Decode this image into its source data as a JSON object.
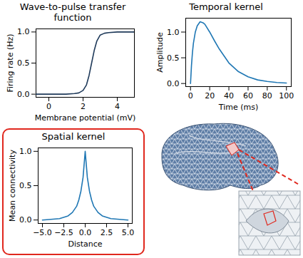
{
  "chart_data": [
    {
      "type": "line",
      "title": "Wave-to-pulse transfer function",
      "xlabel": "Membrane potential (mV)",
      "ylabel": "Firing rate (Hz)",
      "color": "#1f3a5a",
      "x": [
        -0.75,
        0,
        1,
        1.5,
        1.75,
        2,
        2.2,
        2.35,
        2.5,
        2.65,
        2.8,
        3,
        3.25,
        3.5,
        4,
        5
      ],
      "values": [
        0,
        0,
        0,
        0.01,
        0.02,
        0.06,
        0.15,
        0.3,
        0.5,
        0.7,
        0.85,
        0.95,
        0.98,
        0.99,
        1,
        1
      ],
      "xlim": [
        -0.75,
        5
      ],
      "ylim": [
        -0.05,
        1.05
      ],
      "xticks": [
        0,
        2,
        4
      ],
      "yticks": [
        {
          "value": 0,
          "label": "0.0"
        },
        {
          "value": 0.5,
          "label": "0.5"
        },
        {
          "value": 1,
          "label": "1.0"
        }
      ]
    },
    {
      "type": "line",
      "title": "Temporal kernel",
      "xlabel": "Time (ms)",
      "ylabel": "Amplitude",
      "color": "#1f77b4",
      "x": [
        0,
        1,
        2,
        3,
        5,
        7,
        10,
        13,
        15,
        20,
        25,
        30,
        40,
        50,
        60,
        70,
        80,
        90,
        100
      ],
      "values": [
        0,
        0.35,
        0.6,
        0.78,
        1.0,
        1.12,
        1.2,
        1.18,
        1.15,
        1.0,
        0.83,
        0.67,
        0.4,
        0.23,
        0.13,
        0.07,
        0.04,
        0.02,
        0.01
      ],
      "xlim": [
        -5,
        105
      ],
      "ylim": [
        -0.06,
        1.27
      ],
      "xticks": [
        0,
        20,
        40,
        60,
        80,
        100
      ],
      "yticks": [
        {
          "value": 0,
          "label": "0.0"
        },
        {
          "value": 0.5,
          "label": "0.5"
        },
        {
          "value": 1,
          "label": "1.0"
        }
      ]
    },
    {
      "type": "line",
      "title": "Spatial kernel",
      "xlabel": "Distance",
      "ylabel": "Mean connectivity",
      "color": "#1f77b4",
      "x": [
        -5,
        -4,
        -3,
        -2,
        -1.5,
        -1,
        -0.75,
        -0.5,
        -0.25,
        0,
        0.25,
        0.5,
        0.75,
        1,
        1.5,
        2,
        3,
        4,
        5
      ],
      "values": [
        0,
        0.01,
        0.02,
        0.06,
        0.11,
        0.2,
        0.29,
        0.42,
        0.62,
        1.0,
        0.62,
        0.42,
        0.29,
        0.2,
        0.11,
        0.06,
        0.02,
        0.01,
        0
      ],
      "xlim": [
        -5.5,
        5.5
      ],
      "ylim": [
        -0.05,
        1.05
      ],
      "xticks": [
        {
          "value": -5,
          "label": "−5.0"
        },
        {
          "value": -2.5,
          "label": "−2.5"
        },
        {
          "value": 0,
          "label": "0.0"
        },
        {
          "value": 2.5,
          "label": "2.5"
        },
        {
          "value": 5,
          "label": "5.0"
        }
      ],
      "yticks": [
        {
          "value": 0,
          "label": "0.0"
        },
        {
          "value": 0.5,
          "label": "0.5"
        },
        {
          "value": 1,
          "label": "1.0"
        }
      ]
    }
  ]
}
